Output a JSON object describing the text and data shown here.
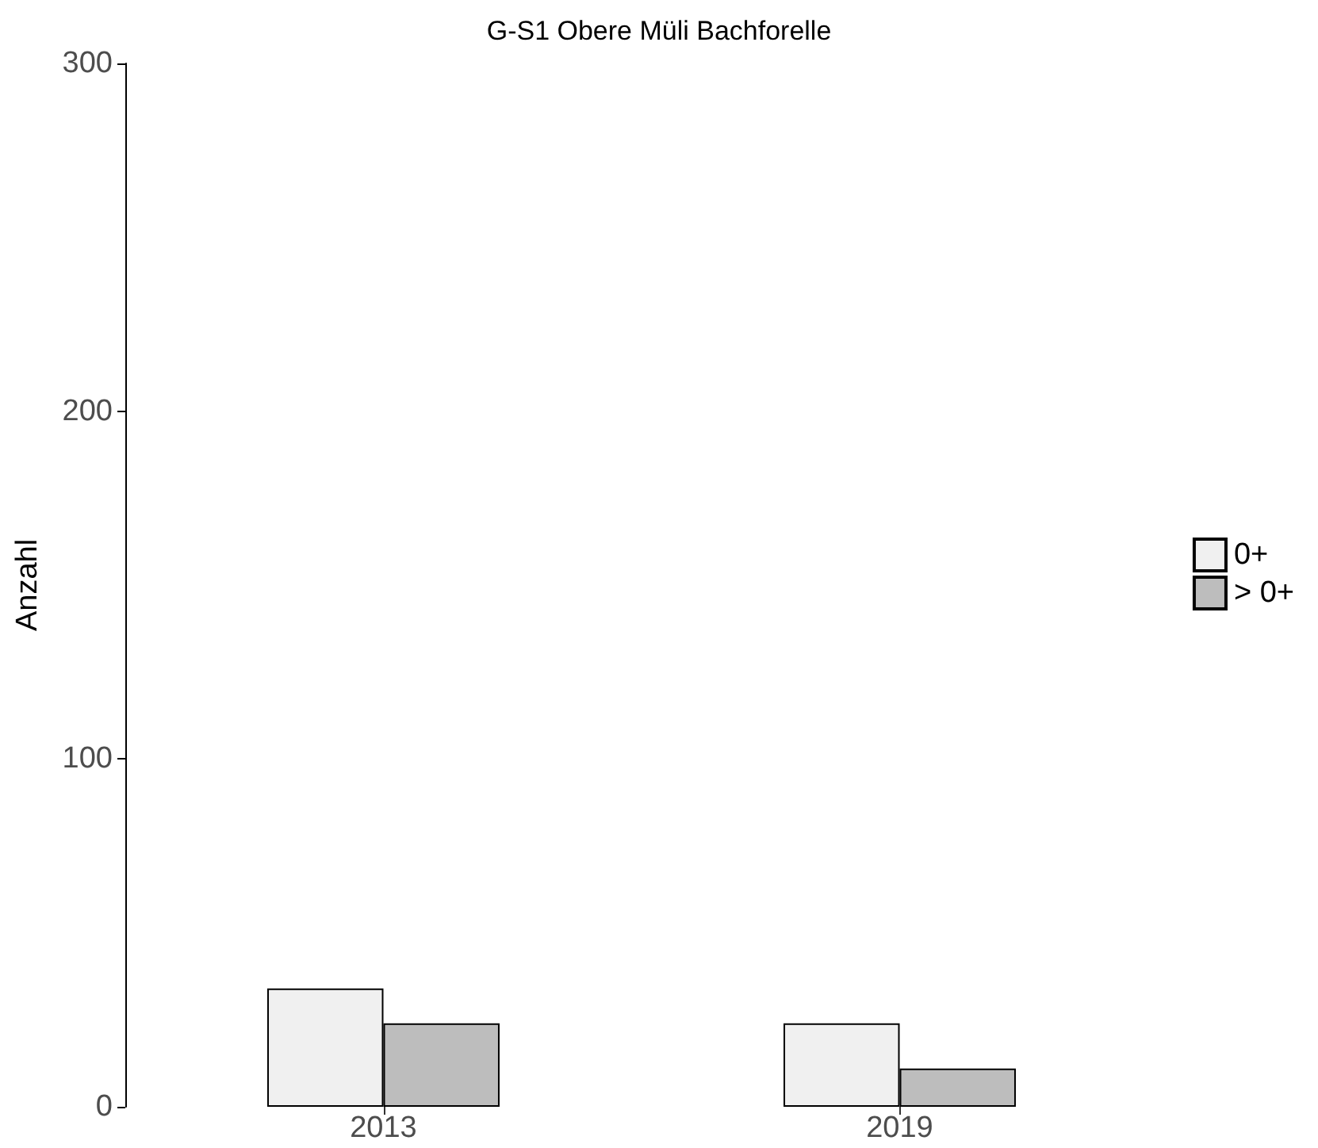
{
  "chart_data": {
    "type": "bar",
    "title": "G-S1 Obere Müli Bachforelle",
    "ylabel": "Anzahl",
    "categories": [
      "2013",
      "2019"
    ],
    "series": [
      {
        "name": "0+",
        "color": "#f0f0f0",
        "values": [
          34,
          24
        ]
      },
      {
        "name": "> 0+",
        "color": "#bdbdbd",
        "values": [
          24,
          11
        ]
      }
    ],
    "ylim": [
      0,
      300
    ],
    "yticks": [
      0,
      100,
      200,
      300
    ],
    "grid": false,
    "legend": "right"
  }
}
